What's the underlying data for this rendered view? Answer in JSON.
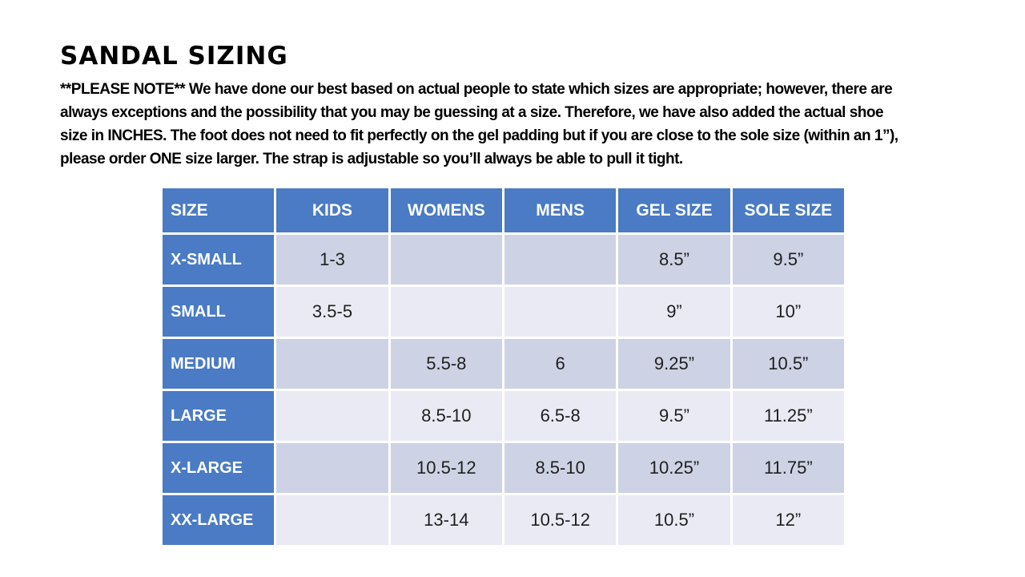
{
  "page": {
    "title": "SANDAL SIZING",
    "note_lines": [
      "**PLEASE NOTE**   We have done our best based on actual people to state which sizes are appropriate; however, there are",
      "always exceptions and the possibility that you may be guessing at a size.  Therefore, we have also added the actual shoe",
      "size in INCHES.  The foot does not need to fit perfectly on the gel padding but if you are close to the sole size (within an 1”),",
      "please order ONE size larger.  The strap is adjustable so you’ll always be able to pull it tight."
    ]
  },
  "colors": {
    "header_blue": "#4a7bc4",
    "band_dark": "#cdd2e4",
    "band_light": "#e9eaf3",
    "header_text": "#ffffff",
    "cell_text": "#1f1f1f",
    "grid_line": "#ffffff"
  },
  "table": {
    "headers": [
      "SIZE",
      "KIDS",
      "WOMENS",
      "MENS",
      "GEL SIZE",
      "SOLE SIZE"
    ],
    "rows": [
      {
        "size": "X-SMALL",
        "kids": "1-3",
        "womens": "",
        "mens": "",
        "gel": "8.5”",
        "sole": "9.5”"
      },
      {
        "size": "SMALL",
        "kids": "3.5-5",
        "womens": "",
        "mens": "",
        "gel": "9”",
        "sole": "10”"
      },
      {
        "size": "MEDIUM",
        "kids": "",
        "womens": "5.5-8",
        "mens": "6",
        "gel": "9.25”",
        "sole": "10.5”"
      },
      {
        "size": "LARGE",
        "kids": "",
        "womens": "8.5-10",
        "mens": "6.5-8",
        "gel": "9.5”",
        "sole": "11.25”"
      },
      {
        "size": "X-LARGE",
        "kids": "",
        "womens": "10.5-12",
        "mens": "8.5-10",
        "gel": "10.25”",
        "sole": "11.75”"
      },
      {
        "size": "XX-LARGE",
        "kids": "",
        "womens": "13-14",
        "mens": "10.5-12",
        "gel": "10.5”",
        "sole": "12”"
      }
    ]
  }
}
